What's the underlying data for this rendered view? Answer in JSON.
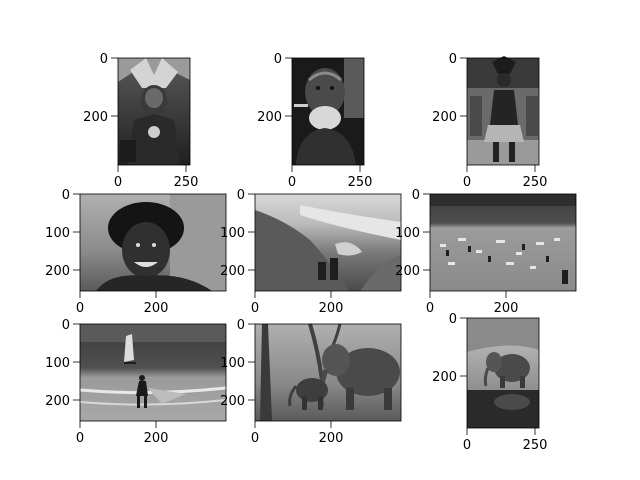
{
  "chart_data": [
    {
      "type": "image",
      "content": "tribal-man-headdress",
      "tone": "grayscale",
      "extent": [
        0,
        260,
        380,
        0
      ],
      "xticks": [
        0,
        250
      ],
      "yticks": [
        0,
        200
      ],
      "xtick_labels": [
        "0",
        "250"
      ],
      "ytick_labels": [
        "0",
        "200"
      ]
    },
    {
      "type": "image",
      "content": "elder-portrait",
      "tone": "grayscale",
      "extent": [
        0,
        260,
        380,
        0
      ],
      "xticks": [
        0,
        250
      ],
      "yticks": [
        0,
        200
      ],
      "xtick_labels": [
        "0",
        "250"
      ],
      "ytick_labels": [
        "0",
        "200"
      ]
    },
    {
      "type": "image",
      "content": "tribal-warrior-full",
      "tone": "grayscale",
      "extent": [
        0,
        260,
        380,
        0
      ],
      "xticks": [
        0,
        250
      ],
      "yticks": [
        0,
        200
      ],
      "xtick_labels": [
        "0",
        "250"
      ],
      "ytick_labels": [
        "0",
        "200"
      ]
    },
    {
      "type": "image",
      "content": "smiling-man",
      "tone": "grayscale",
      "extent": [
        0,
        380,
        260,
        0
      ],
      "xticks": [
        0,
        200
      ],
      "yticks": [
        0,
        100,
        200
      ],
      "xtick_labels": [
        "0",
        "200"
      ],
      "ytick_labels": [
        "0",
        "100",
        "200"
      ]
    },
    {
      "type": "image",
      "content": "coastal-dunes",
      "tone": "grayscale",
      "extent": [
        0,
        380,
        260,
        0
      ],
      "xticks": [
        0,
        200
      ],
      "yticks": [
        0,
        100,
        200
      ],
      "xtick_labels": [
        "0",
        "200"
      ],
      "ytick_labels": [
        "0",
        "100",
        "200"
      ]
    },
    {
      "type": "image",
      "content": "crowded-beach",
      "tone": "grayscale",
      "extent": [
        0,
        380,
        260,
        0
      ],
      "xticks": [
        0,
        200
      ],
      "yticks": [
        0,
        100,
        200
      ],
      "xtick_labels": [
        "0",
        "200"
      ],
      "ytick_labels": [
        "0",
        "100",
        "200"
      ]
    },
    {
      "type": "image",
      "content": "windsurfer-beach",
      "tone": "grayscale",
      "extent": [
        0,
        380,
        260,
        0
      ],
      "xticks": [
        0,
        200
      ],
      "yticks": [
        0,
        100,
        200
      ],
      "xtick_labels": [
        "0",
        "200"
      ],
      "ytick_labels": [
        "0",
        "100",
        "200"
      ]
    },
    {
      "type": "image",
      "content": "elephants",
      "tone": "grayscale",
      "extent": [
        0,
        380,
        260,
        0
      ],
      "xticks": [
        0,
        200
      ],
      "yticks": [
        0,
        100,
        200
      ],
      "xtick_labels": [
        "0",
        "200"
      ],
      "ytick_labels": [
        "0",
        "100",
        "200"
      ]
    },
    {
      "type": "image",
      "content": "elephant-waterhole",
      "tone": "grayscale",
      "extent": [
        0,
        260,
        380,
        0
      ],
      "xticks": [
        0,
        250
      ],
      "yticks": [
        0,
        200
      ],
      "xtick_labels": [
        "0",
        "250"
      ],
      "ytick_labels": [
        "0",
        "200"
      ]
    }
  ]
}
